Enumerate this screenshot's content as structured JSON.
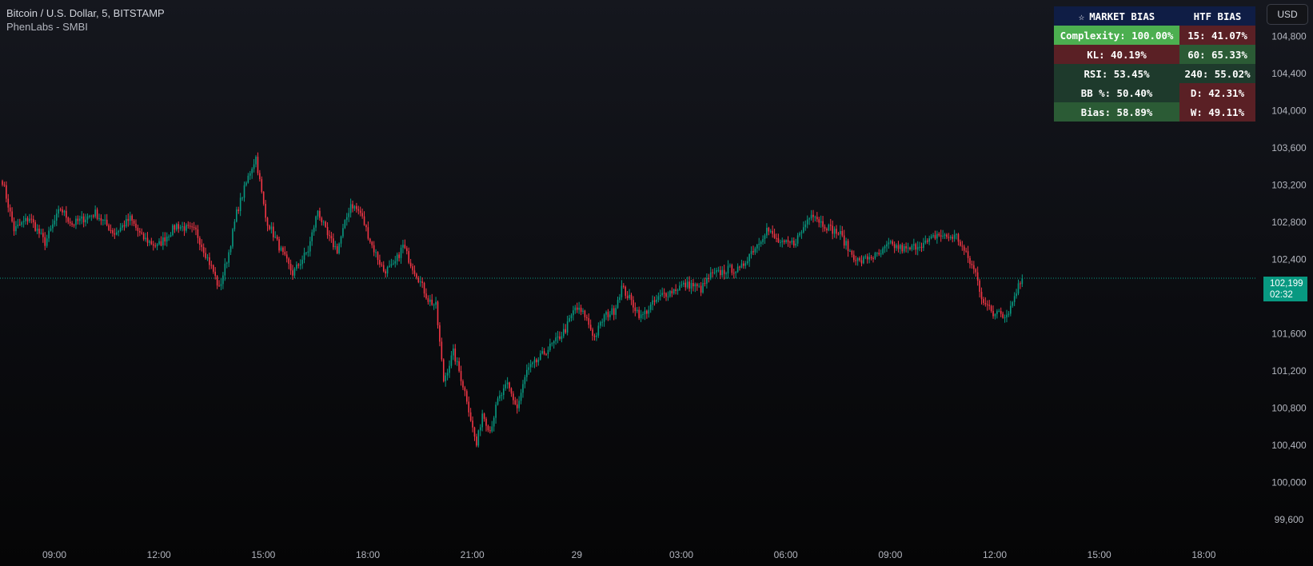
{
  "header": {
    "symbol_title": "Bitcoin / U.S. Dollar, 5, BITSTAMP",
    "indicator_name": "PhenLabs - SMBI"
  },
  "currency_button": "USD",
  "current_price": {
    "price": "102,199",
    "countdown": "02:32",
    "value": 102199
  },
  "bias_table": {
    "headers": [
      "MARKET BIAS",
      "HTF BIAS"
    ],
    "star_icon": "star-icon",
    "rows": [
      {
        "left": "Complexity: 100.00%",
        "right": "15: 41.07%",
        "left_color": "#4caf50",
        "right_color": "#5a2025"
      },
      {
        "left": "KL: 40.19%",
        "right": "60: 65.33%",
        "left_color": "#5a2025",
        "right_color": "#2b5b35"
      },
      {
        "left": "RSI: 53.45%",
        "right": "240: 55.02%",
        "left_color": "#1e3a2c",
        "right_color": "#1e3a2c"
      },
      {
        "left": "BB %: 50.40%",
        "right": "D: 42.31%",
        "left_color": "#1e3a2c",
        "right_color": "#5a2025"
      },
      {
        "left": "Bias: 58.89%",
        "right": "W: 49.11%",
        "left_color": "#2b5b35",
        "right_color": "#5a2025"
      }
    ]
  },
  "colors": {
    "up": "#089981",
    "down": "#f23645",
    "price_line": "#089981"
  },
  "chart_data": {
    "type": "candlestick",
    "y_axis_labels": [
      "104,800",
      "104,400",
      "104,000",
      "103,600",
      "103,200",
      "102,800",
      "102,400",
      "102,000",
      "101,600",
      "101,200",
      "100,800",
      "100,400",
      "100,000",
      "99,600"
    ],
    "x_axis_labels": [
      "09:00",
      "12:00",
      "15:00",
      "18:00",
      "21:00",
      "29",
      "03:00",
      "06:00",
      "09:00",
      "12:00",
      "15:00",
      "18:00"
    ],
    "ylim": [
      99450,
      105000
    ],
    "anchors": [
      [
        0,
        103250
      ],
      [
        6,
        102720
      ],
      [
        14,
        102850
      ],
      [
        22,
        102580
      ],
      [
        30,
        102950
      ],
      [
        36,
        102780
      ],
      [
        48,
        102900
      ],
      [
        58,
        102680
      ],
      [
        66,
        102840
      ],
      [
        72,
        102640
      ],
      [
        80,
        102540
      ],
      [
        90,
        102770
      ],
      [
        100,
        102700
      ],
      [
        109,
        102270
      ],
      [
        112,
        102080
      ],
      [
        117,
        102480
      ],
      [
        121,
        102900
      ],
      [
        128,
        103350
      ],
      [
        131,
        103500
      ],
      [
        136,
        102850
      ],
      [
        145,
        102450
      ],
      [
        150,
        102250
      ],
      [
        158,
        102500
      ],
      [
        163,
        102930
      ],
      [
        168,
        102650
      ],
      [
        173,
        102500
      ],
      [
        180,
        103000
      ],
      [
        185,
        102900
      ],
      [
        191,
        102550
      ],
      [
        197,
        102280
      ],
      [
        202,
        102320
      ],
      [
        207,
        102550
      ],
      [
        211,
        102360
      ],
      [
        215,
        102200
      ],
      [
        220,
        101970
      ],
      [
        224,
        101900
      ],
      [
        228,
        101100
      ],
      [
        233,
        101400
      ],
      [
        236,
        101200
      ],
      [
        240,
        100900
      ],
      [
        243,
        100580
      ],
      [
        245,
        100400
      ],
      [
        248,
        100750
      ],
      [
        252,
        100560
      ],
      [
        256,
        100880
      ],
      [
        261,
        101050
      ],
      [
        266,
        100800
      ],
      [
        271,
        101200
      ],
      [
        276,
        101300
      ],
      [
        281,
        101420
      ],
      [
        286,
        101520
      ],
      [
        291,
        101650
      ],
      [
        296,
        101880
      ],
      [
        301,
        101800
      ],
      [
        306,
        101560
      ],
      [
        311,
        101790
      ],
      [
        316,
        101850
      ],
      [
        320,
        102100
      ],
      [
        324,
        101980
      ],
      [
        330,
        101780
      ],
      [
        336,
        101920
      ],
      [
        341,
        102020
      ],
      [
        346,
        102060
      ],
      [
        351,
        102120
      ],
      [
        356,
        102130
      ],
      [
        361,
        102080
      ],
      [
        366,
        102230
      ],
      [
        371,
        102260
      ],
      [
        376,
        102300
      ],
      [
        381,
        102280
      ],
      [
        386,
        102460
      ],
      [
        390,
        102560
      ],
      [
        395,
        102730
      ],
      [
        399,
        102630
      ],
      [
        403,
        102560
      ],
      [
        409,
        102580
      ],
      [
        413,
        102700
      ],
      [
        418,
        102920
      ],
      [
        423,
        102800
      ],
      [
        428,
        102730
      ],
      [
        433,
        102670
      ],
      [
        438,
        102480
      ],
      [
        443,
        102370
      ],
      [
        448,
        102430
      ],
      [
        453,
        102440
      ],
      [
        458,
        102560
      ],
      [
        463,
        102530
      ],
      [
        468,
        102500
      ],
      [
        473,
        102560
      ],
      [
        478,
        102580
      ],
      [
        483,
        102670
      ],
      [
        488,
        102640
      ],
      [
        493,
        102650
      ],
      [
        498,
        102450
      ],
      [
        503,
        102250
      ],
      [
        506,
        102000
      ],
      [
        509,
        101900
      ],
      [
        512,
        101800
      ],
      [
        515,
        101880
      ],
      [
        518,
        101780
      ],
      [
        521,
        101890
      ],
      [
        524,
        102070
      ],
      [
        527,
        102200
      ]
    ]
  }
}
